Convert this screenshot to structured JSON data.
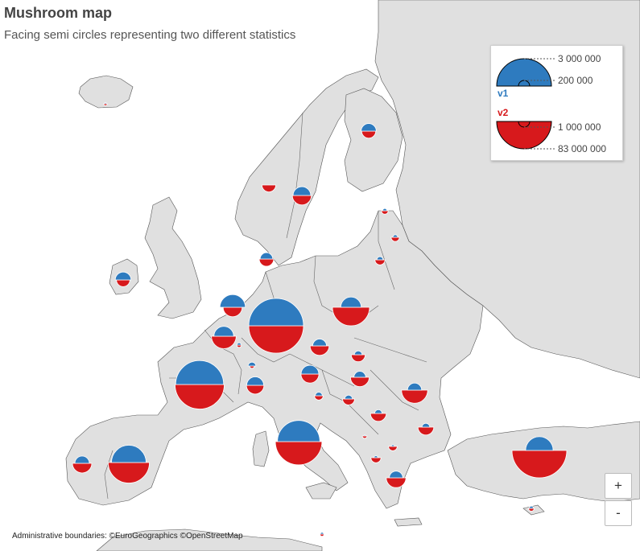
{
  "title": "Mushroom map",
  "subtitle": "Facing semi circles representing two different statistics",
  "attribution": "Administrative boundaries: ©EuroGeographics ©OpenStreetMap",
  "zoom": {
    "in_label": "+",
    "out_label": "-"
  },
  "colors": {
    "v1": "#2e7bbf",
    "v2": "#d7191c",
    "land": "#e0e0e0",
    "sea": "#ffffff",
    "border": "#555555"
  },
  "legend": {
    "v1": {
      "label": "v1",
      "max_value": "3 000 000",
      "min_value": "200 000"
    },
    "v2": {
      "label": "v2",
      "min_value": "1 000 000",
      "max_value": "83 000 000"
    }
  },
  "map_data": {
    "type": "mushroom-map",
    "v1_scale": {
      "value_for_r34": 3000000
    },
    "v2_scale": {
      "value_for_r34": 83000000
    },
    "regions": [
      {
        "id": "iceland",
        "v1": 5000,
        "v2": 360000
      },
      {
        "id": "finland",
        "v1": 230000,
        "v2": 5500000
      },
      {
        "id": "norway-west",
        "v1": 0,
        "v2": 5300000
      },
      {
        "id": "sweden",
        "v1": 310000,
        "v2": 10000000
      },
      {
        "id": "estonia",
        "v1": 20000,
        "v2": 1300000
      },
      {
        "id": "latvia",
        "v1": 25000,
        "v2": 1900000
      },
      {
        "id": "lithuania",
        "v1": 40000,
        "v2": 2800000
      },
      {
        "id": "denmark",
        "v1": 160000,
        "v2": 5800000
      },
      {
        "id": "ireland",
        "v1": 250000,
        "v2": 5000000
      },
      {
        "id": "uk",
        "v1": 650000,
        "v2": 10000000
      },
      {
        "id": "germany",
        "v1": 3000000,
        "v2": 83000000
      },
      {
        "id": "poland",
        "v1": 420000,
        "v2": 38000000
      },
      {
        "id": "netherlands",
        "v1": 390000,
        "v2": 17000000
      },
      {
        "id": "belgium",
        "v1": 20000,
        "v2": 600000
      },
      {
        "id": "czechia",
        "v1": 190000,
        "v2": 10000000
      },
      {
        "id": "slovakia",
        "v1": 60000,
        "v2": 5400000
      },
      {
        "id": "france",
        "v1": 2300000,
        "v2": 67000000
      },
      {
        "id": "switzerland",
        "v1": 290000,
        "v2": 8500000
      },
      {
        "id": "austria",
        "v1": 310000,
        "v2": 8900000
      },
      {
        "id": "hungary",
        "v1": 140000,
        "v2": 9700000
      },
      {
        "id": "romania",
        "v1": 200000,
        "v2": 19000000
      },
      {
        "id": "slovenia",
        "v1": 50000,
        "v2": 2100000
      },
      {
        "id": "croatia",
        "v1": 60000,
        "v2": 4000000
      },
      {
        "id": "serbia",
        "v1": 55000,
        "v2": 6900000
      },
      {
        "id": "bulgaria",
        "v1": 60000,
        "v2": 6900000
      },
      {
        "id": "montenegro",
        "v1": 4000,
        "v2": 620000
      },
      {
        "id": "north-macedonia",
        "v1": 10000,
        "v2": 2100000
      },
      {
        "id": "albania",
        "v1": 15000,
        "v2": 2800000
      },
      {
        "id": "greece",
        "v1": 180000,
        "v2": 10700000
      },
      {
        "id": "italy",
        "v1": 1800000,
        "v2": 60000000
      },
      {
        "id": "portugal",
        "v1": 210000,
        "v2": 10300000
      },
      {
        "id": "spain",
        "v1": 1200000,
        "v2": 47000000
      },
      {
        "id": "turkey",
        "v1": 760000,
        "v2": 83000000
      },
      {
        "id": "cyprus",
        "v1": 20000,
        "v2": 890000
      },
      {
        "id": "malta",
        "v1": 12000,
        "v2": 500000
      },
      {
        "id": "luxembourg",
        "v1": 60000,
        "v2": 620000
      }
    ]
  }
}
